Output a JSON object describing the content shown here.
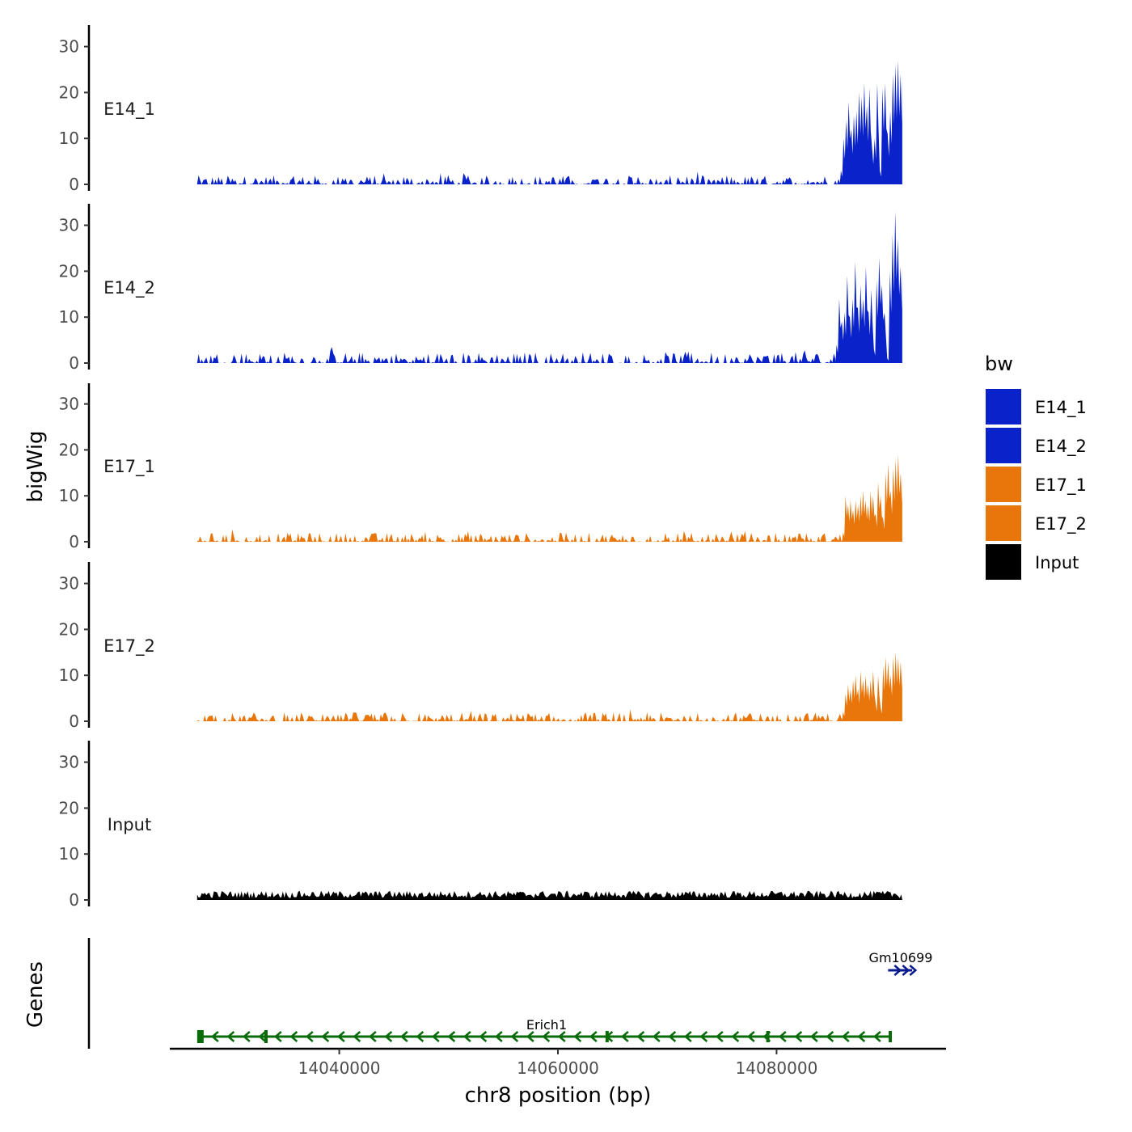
{
  "chart_data": {
    "type": "area",
    "ylabel": "bigWig",
    "xlabel": "chr8 position (bp)",
    "genes_label": "Genes",
    "ylim": [
      0,
      34
    ],
    "y_ticks": [
      0,
      10,
      20,
      30
    ],
    "xlim": [
      14024500,
      14095500
    ],
    "x_ticks": [
      14040000,
      14060000,
      14080000
    ],
    "x_tick_labels": [
      "14040000",
      "14060000",
      "14080000"
    ],
    "signal_range": [
      14027000,
      14091500
    ],
    "legend": {
      "title": "bw",
      "position": "right"
    },
    "tracks": [
      {
        "name": "E14_1",
        "color": "#0a22c9",
        "background_max": 2,
        "peak_start": 14085800,
        "peak_values": [
          3,
          10,
          14,
          18,
          12,
          15,
          16,
          20,
          19,
          22,
          17,
          21,
          8,
          10,
          22,
          3,
          21,
          22,
          11,
          16,
          24,
          26,
          27,
          24
        ]
      },
      {
        "name": "E14_2",
        "color": "#0a22c9",
        "background_max": 2.5,
        "peak_start": 14085400,
        "peak_values": [
          4,
          14,
          9,
          11,
          19,
          10,
          14,
          22,
          12,
          17,
          14,
          21,
          11,
          16,
          3,
          18,
          23,
          17,
          11,
          1,
          20,
          28,
          33,
          27,
          21
        ]
      },
      {
        "name": "E17_1",
        "color": "#e8760a",
        "background_max": 2,
        "peak_start": 14086000,
        "peak_values": [
          2,
          10,
          8,
          9,
          7,
          9,
          8,
          10,
          11,
          9,
          8,
          11,
          10,
          6,
          13,
          10,
          5,
          15,
          17,
          11,
          16,
          18,
          19,
          15
        ]
      },
      {
        "name": "E17_2",
        "color": "#e8760a",
        "background_max": 2,
        "peak_start": 14086000,
        "peak_values": [
          2,
          6,
          8,
          7,
          9,
          10,
          7,
          11,
          9,
          10,
          8,
          9,
          11,
          4,
          10,
          3,
          12,
          14,
          13,
          10,
          14,
          15,
          14,
          13
        ]
      },
      {
        "name": "Input",
        "color": "#000000",
        "background_max": 2,
        "peak_start": null,
        "peak_values": []
      }
    ],
    "genes": [
      {
        "name": "Erich1",
        "color": "#0a6b0a",
        "strand": "-",
        "start": 14027300,
        "end": 14090500,
        "exons": [
          14027300,
          14033300,
          14064500,
          14079200,
          14090400
        ]
      },
      {
        "name": "Gm10699",
        "color": "#0a1a8c",
        "strand": "+",
        "start": 14090200,
        "end": 14092400,
        "exons": []
      }
    ]
  }
}
